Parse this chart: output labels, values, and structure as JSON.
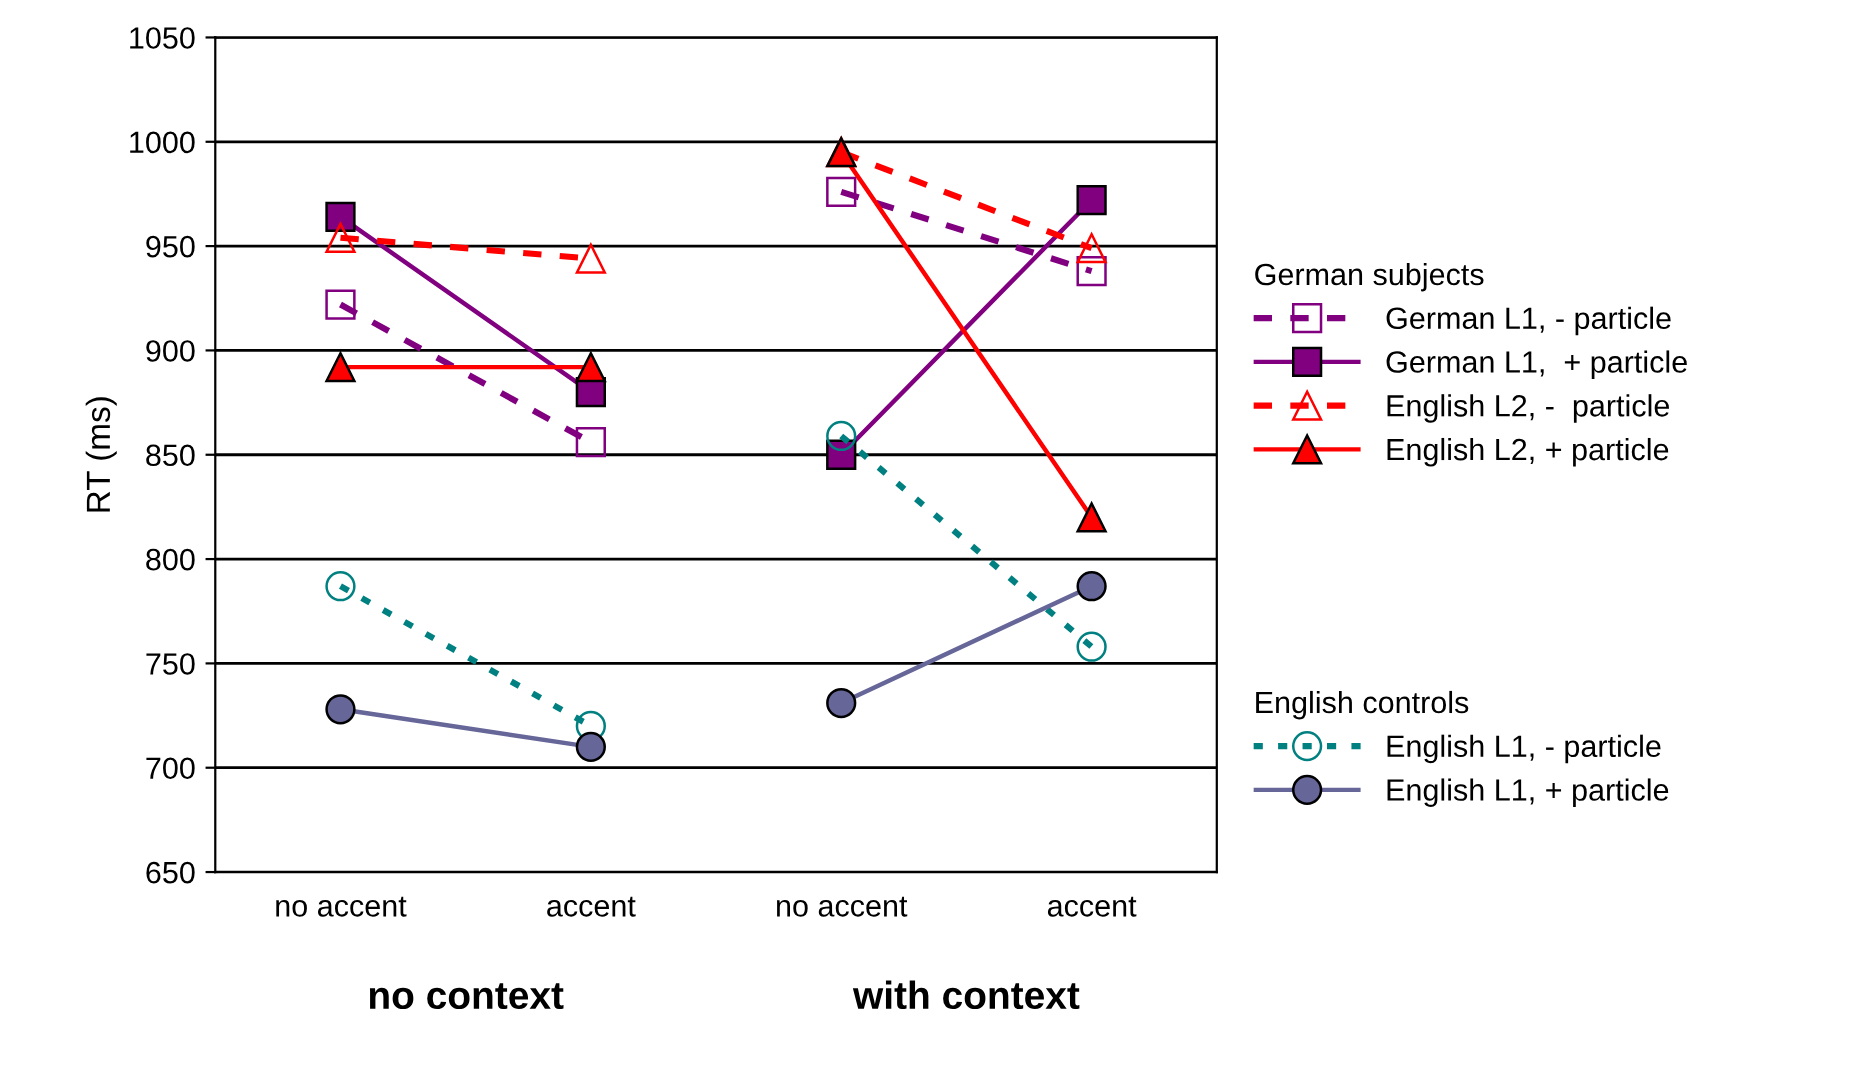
{
  "chart_data": {
    "type": "line",
    "ylabel": "RT (ms)",
    "legend_title": "German subjects",
    "categories": [
      "no accent",
      "accent",
      "no accent",
      "accent"
    ],
    "ylim": [
      650,
      1050
    ],
    "yticks": [
      650,
      700,
      750,
      800,
      850,
      900,
      950,
      1000,
      1050
    ],
    "grid": "y",
    "legend": "right",
    "annotations": [
      "no context",
      "with context",
      "English controls"
    ],
    "series": [
      {
        "name": "German L1, - particle",
        "color": "#800080",
        "marker": "square",
        "line_style": "dashed",
        "values": [
          922,
          856,
          976,
          938
        ]
      },
      {
        "name": "German L1,  + particle",
        "color": "#800080",
        "marker": "square",
        "line_style": "solid",
        "values": [
          964,
          880,
          850,
          972
        ]
      },
      {
        "name": "English L2, -  particle",
        "color": "#ff0000",
        "marker": "triangle",
        "line_style": "dashed",
        "values": [
          954,
          944,
          995,
          949
        ]
      },
      {
        "name": "English L2, + particle",
        "color": "#ff0000",
        "marker": "triangle",
        "line_style": "solid",
        "values": [
          892,
          892,
          995,
          820
        ]
      },
      {
        "name": "English L1, - particle",
        "color": "#008080",
        "marker": "circle",
        "line_style": "dotted",
        "values": [
          787,
          720,
          859,
          758
        ]
      },
      {
        "name": "English L1, + particle",
        "color": "#666699",
        "marker": "circle",
        "line_style": "solid",
        "values": [
          728,
          710,
          731,
          787
        ]
      }
    ]
  }
}
